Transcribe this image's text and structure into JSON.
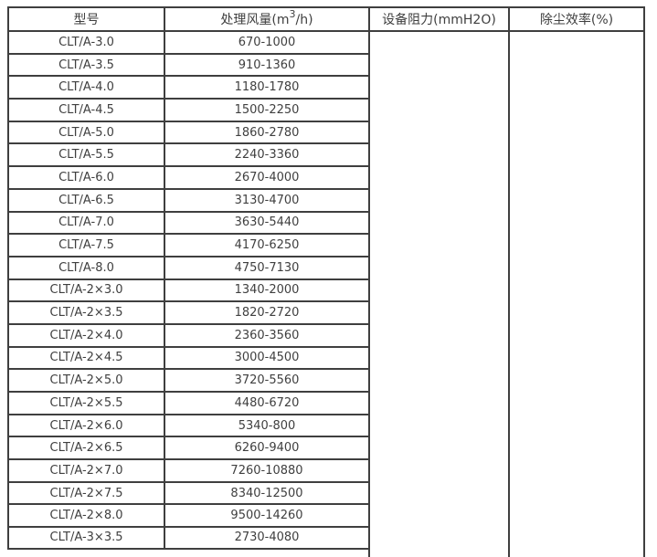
{
  "colors": {
    "border": "#3f3f3f",
    "text": "#3f3f3f",
    "background": "#ffffff"
  },
  "chart_data": {
    "type": "table",
    "columns": [
      "型号",
      "处理风量(m3/h)",
      "设备阻力(mmH2O)",
      "除尘效率(%)"
    ],
    "airflow_header_parts": {
      "pre": "处理风量(m",
      "sup": "3",
      "post": "/h)"
    },
    "rows": [
      [
        "CLT/A-3.0",
        "670-1000"
      ],
      [
        "CLT/A-3.5",
        "910-1360"
      ],
      [
        "CLT/A-4.0",
        "1180-1780"
      ],
      [
        "CLT/A-4.5",
        "1500-2250"
      ],
      [
        "CLT/A-5.0",
        "1860-2780"
      ],
      [
        "CLT/A-5.5",
        "2240-3360"
      ],
      [
        "CLT/A-6.0",
        "2670-4000"
      ],
      [
        "CLT/A-6.5",
        "3130-4700"
      ],
      [
        "CLT/A-7.0",
        "3630-5440"
      ],
      [
        "CLT/A-7.5",
        "4170-6250"
      ],
      [
        "CLT/A-8.0",
        "4750-7130"
      ],
      [
        "CLT/A-2×3.0",
        "1340-2000"
      ],
      [
        "CLT/A-2×3.5",
        "1820-2720"
      ],
      [
        "CLT/A-2×4.0",
        "2360-3560"
      ],
      [
        "CLT/A-2×4.5",
        "3000-4500"
      ],
      [
        "CLT/A-2×5.0",
        "3720-5560"
      ],
      [
        "CLT/A-2×5.5",
        "4480-6720"
      ],
      [
        "CLT/A-2×6.0",
        "5340-800"
      ],
      [
        "CLT/A-2×6.5",
        "6260-9400"
      ],
      [
        "CLT/A-2×7.0",
        "7260-10880"
      ],
      [
        "CLT/A-2×7.5",
        "8340-12500"
      ],
      [
        "CLT/A-2×8.0",
        "9500-14260"
      ],
      [
        "CLT/A-3×3.5",
        "2730-4080"
      ]
    ],
    "resistance_cell": "",
    "efficiency_cell": ""
  }
}
